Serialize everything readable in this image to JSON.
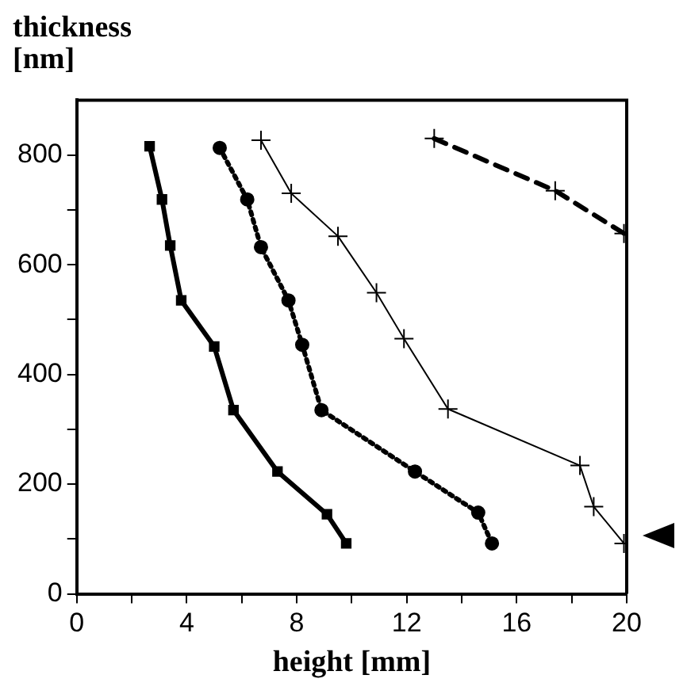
{
  "chart_data": {
    "type": "line",
    "ylabel": "thickness\n[nm]",
    "xlabel": "height [mm]",
    "xlim": [
      0,
      20
    ],
    "xticks": [
      0,
      {
        "value": 2,
        "label": null
      },
      4,
      {
        "value": 6,
        "label": null
      },
      8,
      {
        "value": 10,
        "label": null
      },
      12,
      {
        "value": 14,
        "label": null
      },
      16,
      {
        "value": 18,
        "label": null
      },
      20
    ],
    "ylim": [
      0,
      900
    ],
    "yticks": [
      0,
      {
        "value": 100,
        "label": null
      },
      200,
      {
        "value": 300,
        "label": null
      },
      400,
      {
        "value": 500,
        "label": null
      },
      600,
      {
        "value": 700,
        "label": null
      },
      800
    ],
    "grid": false,
    "legend": false,
    "series": [
      {
        "color": "#000000",
        "marker": "square",
        "line_style": "solid",
        "x": [
          2.65,
          3.1,
          3.4,
          3.8,
          5.0,
          5.7,
          7.3,
          9.1,
          9.8
        ],
        "values": [
          816,
          719,
          635,
          535,
          451,
          335,
          223,
          145,
          92
        ]
      },
      {
        "color": "#000000",
        "marker": "circle",
        "line_style": "dotted",
        "x": [
          5.2,
          6.2,
          6.7,
          7.7,
          8.2,
          8.9,
          12.3,
          14.6,
          15.1
        ],
        "values": [
          813,
          719,
          632,
          535,
          454,
          335,
          223,
          148,
          92
        ]
      },
      {
        "color": "#000000",
        "marker": "cross",
        "line_style": "solid",
        "x": [
          6.7,
          7.8,
          9.5,
          10.9,
          11.9,
          13.5,
          18.3,
          18.8,
          19.9
        ],
        "values": [
          827,
          730,
          652,
          549,
          465,
          337,
          234,
          159,
          92
        ]
      },
      {
        "color": "#000000",
        "marker": "cross",
        "line_style": "dashed",
        "x": [
          13.0,
          17.4,
          19.9
        ],
        "values": [
          830,
          735,
          657
        ]
      }
    ]
  }
}
